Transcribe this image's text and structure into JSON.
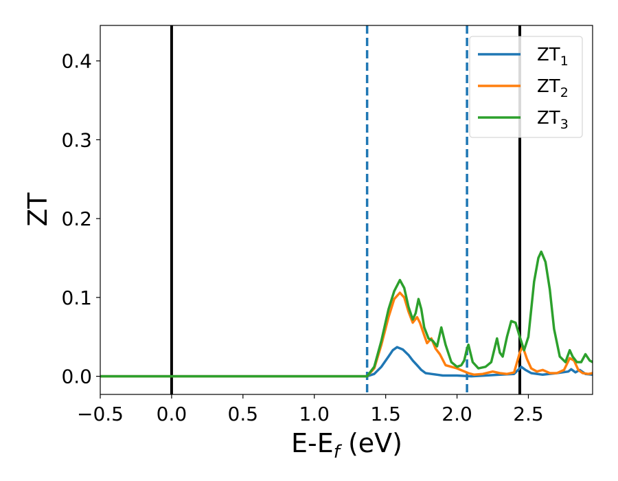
{
  "chart_data": {
    "type": "line",
    "xlabel": "E-E",
    "xlabel_sub": "f",
    "xlabel_unit": " (eV)",
    "ylabel": "ZT",
    "xlim": [
      -0.5,
      2.95
    ],
    "ylim": [
      -0.023,
      0.445
    ],
    "xticks": [
      -0.5,
      0.0,
      0.5,
      1.0,
      1.5,
      2.0,
      2.5
    ],
    "xtick_labels": [
      "−0.5",
      "0.0",
      "0.5",
      "1.0",
      "1.5",
      "2.0",
      "2.5"
    ],
    "yticks": [
      0.0,
      0.1,
      0.2,
      0.3,
      0.4
    ],
    "ytick_labels": [
      "0.0",
      "0.1",
      "0.2",
      "0.3",
      "0.4"
    ],
    "legend_position": "top-right",
    "vlines": [
      {
        "x": 0.0,
        "style": "solid",
        "color": "#000000"
      },
      {
        "x": 2.44,
        "style": "solid",
        "color": "#000000"
      },
      {
        "x": 1.37,
        "style": "dashed",
        "color": "#1f77b4"
      },
      {
        "x": 2.07,
        "style": "dashed",
        "color": "#1f77b4"
      }
    ],
    "series": [
      {
        "name": "ZT",
        "name_sub": "1",
        "color": "#1f77b4",
        "points": [
          [
            -0.5,
            0
          ],
          [
            1.37,
            0
          ],
          [
            1.42,
            0.003
          ],
          [
            1.47,
            0.012
          ],
          [
            1.52,
            0.025
          ],
          [
            1.55,
            0.033
          ],
          [
            1.58,
            0.037
          ],
          [
            1.62,
            0.034
          ],
          [
            1.66,
            0.027
          ],
          [
            1.69,
            0.02
          ],
          [
            1.72,
            0.014
          ],
          [
            1.75,
            0.008
          ],
          [
            1.78,
            0.004
          ],
          [
            1.82,
            0.003
          ],
          [
            1.86,
            0.002
          ],
          [
            1.9,
            0.001
          ],
          [
            2.0,
            0.001
          ],
          [
            2.1,
            0
          ],
          [
            2.2,
            0.001
          ],
          [
            2.3,
            0.002
          ],
          [
            2.4,
            0.003
          ],
          [
            2.45,
            0.012
          ],
          [
            2.48,
            0.008
          ],
          [
            2.52,
            0.004
          ],
          [
            2.6,
            0.002
          ],
          [
            2.7,
            0.004
          ],
          [
            2.78,
            0.006
          ],
          [
            2.8,
            0.009
          ],
          [
            2.83,
            0.005
          ],
          [
            2.86,
            0.008
          ],
          [
            2.9,
            0.003
          ],
          [
            2.95,
            0.002
          ]
        ]
      },
      {
        "name": "ZT",
        "name_sub": "2",
        "color": "#ff7f0e",
        "points": [
          [
            -0.5,
            0
          ],
          [
            1.37,
            0
          ],
          [
            1.42,
            0.01
          ],
          [
            1.47,
            0.04
          ],
          [
            1.52,
            0.075
          ],
          [
            1.56,
            0.098
          ],
          [
            1.6,
            0.106
          ],
          [
            1.63,
            0.1
          ],
          [
            1.66,
            0.082
          ],
          [
            1.69,
            0.068
          ],
          [
            1.72,
            0.075
          ],
          [
            1.74,
            0.068
          ],
          [
            1.77,
            0.052
          ],
          [
            1.79,
            0.042
          ],
          [
            1.82,
            0.048
          ],
          [
            1.85,
            0.035
          ],
          [
            1.88,
            0.028
          ],
          [
            1.92,
            0.014
          ],
          [
            1.96,
            0.012
          ],
          [
            2.0,
            0.01
          ],
          [
            2.04,
            0.007
          ],
          [
            2.08,
            0.004
          ],
          [
            2.12,
            0.002
          ],
          [
            2.18,
            0.003
          ],
          [
            2.25,
            0.006
          ],
          [
            2.3,
            0.004
          ],
          [
            2.35,
            0.003
          ],
          [
            2.4,
            0.005
          ],
          [
            2.44,
            0.03
          ],
          [
            2.46,
            0.038
          ],
          [
            2.49,
            0.022
          ],
          [
            2.52,
            0.01
          ],
          [
            2.56,
            0.006
          ],
          [
            2.6,
            0.008
          ],
          [
            2.65,
            0.004
          ],
          [
            2.7,
            0.004
          ],
          [
            2.75,
            0.008
          ],
          [
            2.79,
            0.023
          ],
          [
            2.82,
            0.02
          ],
          [
            2.85,
            0.008
          ],
          [
            2.88,
            0.004
          ],
          [
            2.92,
            0.003
          ],
          [
            2.95,
            0.004
          ]
        ]
      },
      {
        "name": "ZT",
        "name_sub": "3",
        "color": "#2ca02c",
        "points": [
          [
            -0.5,
            0
          ],
          [
            1.37,
            0
          ],
          [
            1.42,
            0.012
          ],
          [
            1.47,
            0.045
          ],
          [
            1.52,
            0.085
          ],
          [
            1.56,
            0.108
          ],
          [
            1.6,
            0.122
          ],
          [
            1.63,
            0.112
          ],
          [
            1.66,
            0.088
          ],
          [
            1.69,
            0.072
          ],
          [
            1.71,
            0.08
          ],
          [
            1.73,
            0.098
          ],
          [
            1.75,
            0.085
          ],
          [
            1.77,
            0.062
          ],
          [
            1.8,
            0.048
          ],
          [
            1.83,
            0.045
          ],
          [
            1.86,
            0.038
          ],
          [
            1.89,
            0.062
          ],
          [
            1.92,
            0.04
          ],
          [
            1.96,
            0.018
          ],
          [
            2.0,
            0.012
          ],
          [
            2.03,
            0.014
          ],
          [
            2.05,
            0.02
          ],
          [
            2.07,
            0.035
          ],
          [
            2.08,
            0.04
          ],
          [
            2.11,
            0.018
          ],
          [
            2.15,
            0.01
          ],
          [
            2.2,
            0.012
          ],
          [
            2.24,
            0.018
          ],
          [
            2.28,
            0.048
          ],
          [
            2.3,
            0.03
          ],
          [
            2.32,
            0.025
          ],
          [
            2.35,
            0.05
          ],
          [
            2.38,
            0.07
          ],
          [
            2.41,
            0.068
          ],
          [
            2.44,
            0.05
          ],
          [
            2.47,
            0.033
          ],
          [
            2.5,
            0.05
          ],
          [
            2.54,
            0.12
          ],
          [
            2.57,
            0.15
          ],
          [
            2.59,
            0.158
          ],
          [
            2.62,
            0.145
          ],
          [
            2.65,
            0.11
          ],
          [
            2.68,
            0.06
          ],
          [
            2.72,
            0.025
          ],
          [
            2.76,
            0.018
          ],
          [
            2.79,
            0.033
          ],
          [
            2.81,
            0.025
          ],
          [
            2.84,
            0.018
          ],
          [
            2.87,
            0.018
          ],
          [
            2.9,
            0.028
          ],
          [
            2.93,
            0.02
          ],
          [
            2.95,
            0.018
          ]
        ]
      }
    ]
  }
}
